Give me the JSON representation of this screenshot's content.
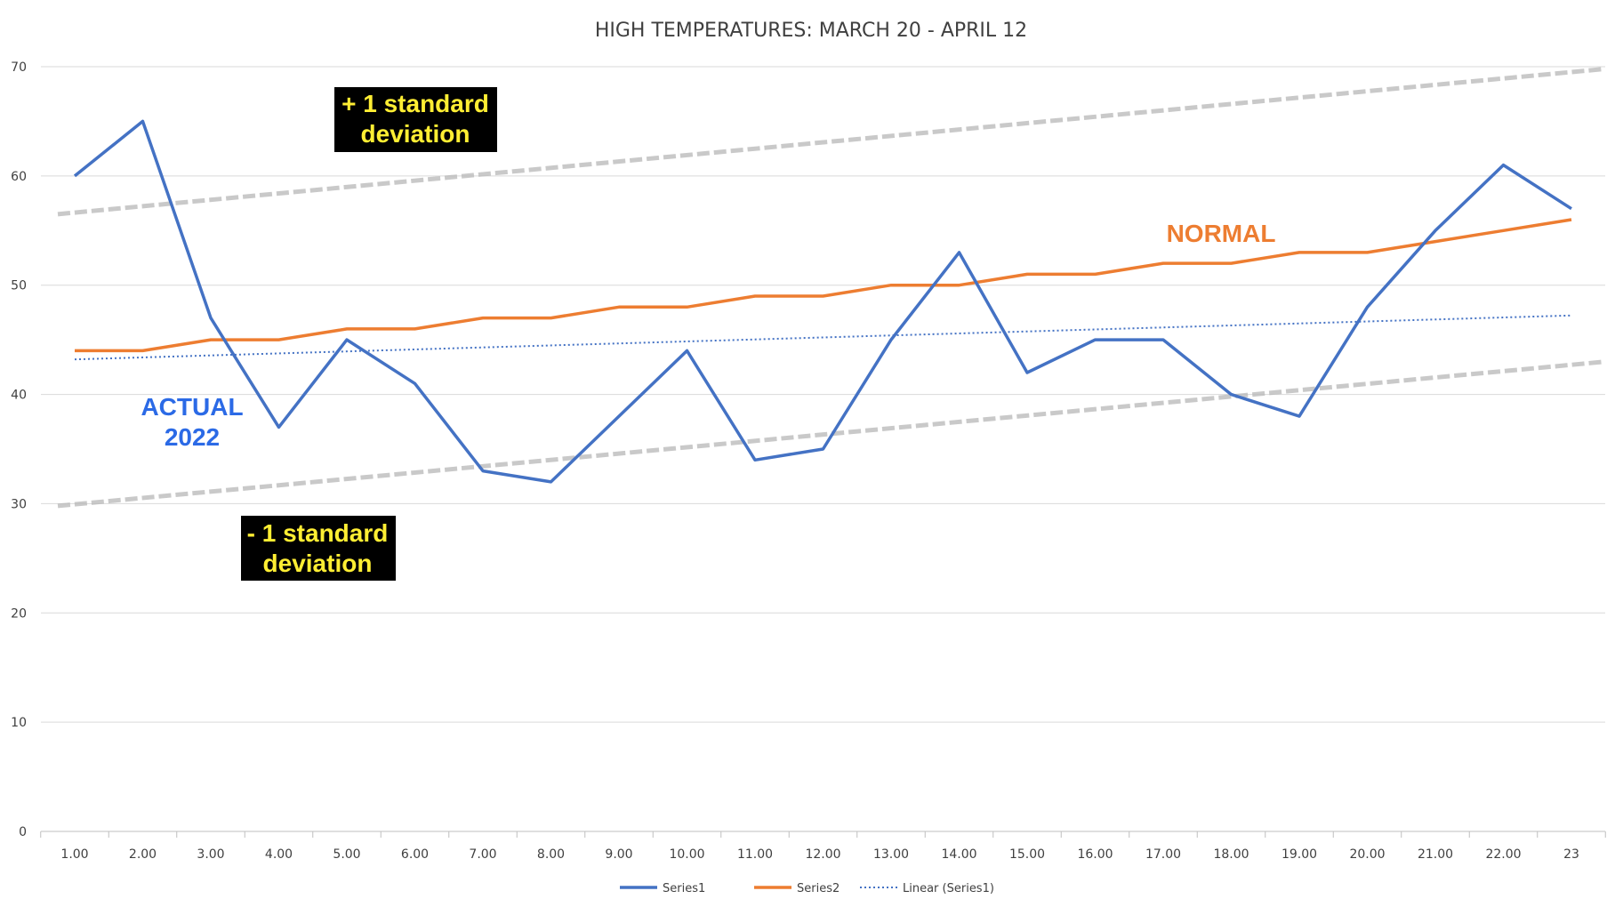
{
  "colors": {
    "series1": "#4472c4",
    "series2": "#ed7d31",
    "trend": "#4472c4",
    "stdband": "#b8b8b8",
    "grid": "#d9d9d9",
    "annotation_box": "#000000",
    "annotation_box_text": "#ffee33",
    "annotation_actual": "#2b6ae6",
    "annotation_normal": "#ed7d31"
  },
  "chart_data": {
    "type": "line",
    "title": "HIGH TEMPERATURES: MARCH 20 - APRIL 12",
    "categories": [
      "1.00",
      "2.00",
      "3.00",
      "4.00",
      "5.00",
      "6.00",
      "7.00",
      "8.00",
      "9.00",
      "10.00",
      "11.00",
      "12.00",
      "13.00",
      "14.00",
      "15.00",
      "16.00",
      "17.00",
      "18.00",
      "19.00",
      "20.00",
      "21.00",
      "22.00",
      "23"
    ],
    "series": [
      {
        "name": "Series1",
        "style": "solid",
        "values": [
          60,
          65,
          47,
          37,
          45,
          41,
          33,
          32,
          38,
          44,
          34,
          35,
          45,
          53,
          42,
          45,
          45,
          40,
          38,
          48,
          55,
          61,
          57
        ]
      },
      {
        "name": "Series2",
        "style": "solid",
        "values": [
          44,
          44,
          45,
          45,
          46,
          46,
          47,
          47,
          48,
          48,
          49,
          49,
          50,
          50,
          51,
          51,
          52,
          52,
          53,
          53,
          54,
          55,
          56
        ]
      },
      {
        "name": "Linear (Series1)",
        "style": "dotted",
        "trendline_of": "Series1"
      }
    ],
    "std_bands": [
      {
        "start": 56.5,
        "end": 69.8
      },
      {
        "start": 29.8,
        "end": 43.0
      }
    ],
    "ylim": [
      0,
      70
    ],
    "yticks": [
      0,
      10,
      20,
      30,
      40,
      50,
      60,
      70
    ],
    "grid": true,
    "legend_position": "bottom",
    "annotations": {
      "plus_sd": [
        "+ 1 standard",
        "deviation"
      ],
      "minus_sd": [
        "- 1 standard",
        "deviation"
      ],
      "actual": [
        "ACTUAL",
        "2022"
      ],
      "normal": "NORMAL"
    }
  }
}
